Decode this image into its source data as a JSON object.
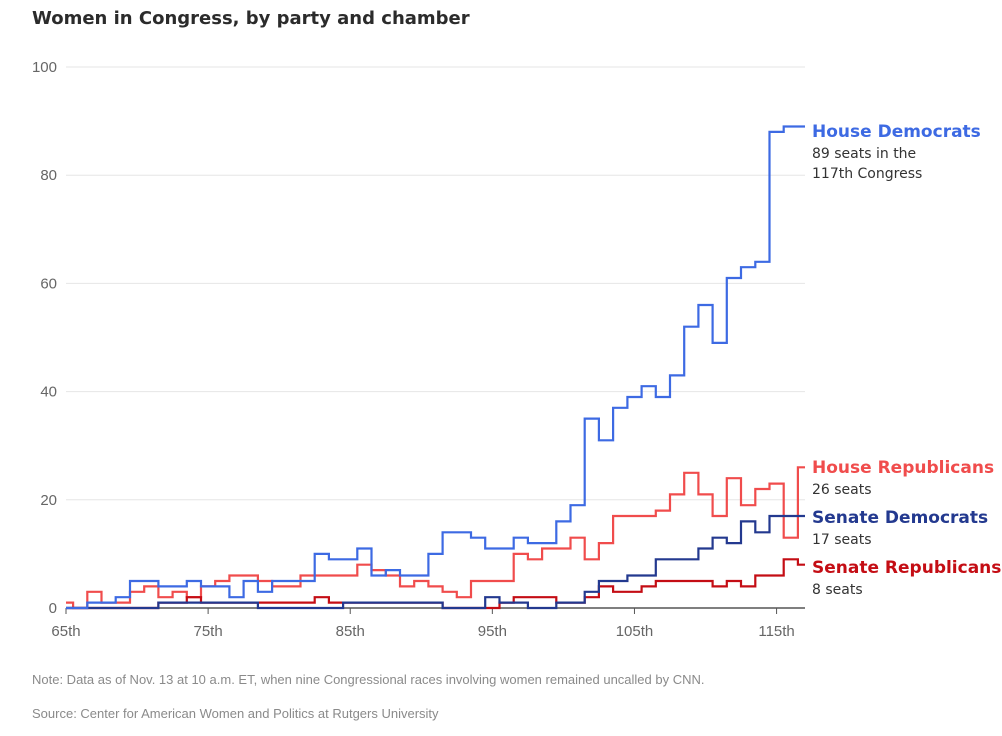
{
  "chart_data": {
    "type": "line",
    "step": true,
    "title": "Women in Congress, by party and chamber",
    "xlabel": "",
    "ylabel": "",
    "xlim": [
      65,
      117
    ],
    "ylim": [
      0,
      100
    ],
    "y_ticks": [
      0,
      20,
      40,
      60,
      80,
      100
    ],
    "x_ticks": [
      65,
      75,
      85,
      95,
      105,
      115
    ],
    "x_tick_labels": [
      "65th",
      "75th",
      "85th",
      "95th",
      "105th",
      "115th"
    ],
    "grid": true,
    "x": [
      65,
      66,
      67,
      68,
      69,
      70,
      71,
      72,
      73,
      74,
      75,
      76,
      77,
      78,
      79,
      80,
      81,
      82,
      83,
      84,
      85,
      86,
      87,
      88,
      89,
      90,
      91,
      92,
      93,
      94,
      95,
      96,
      97,
      98,
      99,
      100,
      101,
      102,
      103,
      104,
      105,
      106,
      107,
      108,
      109,
      110,
      111,
      112,
      113,
      114,
      115,
      116,
      117
    ],
    "series": [
      {
        "name": "House Democrats",
        "color": "#3d6ae3",
        "label_sub": "89 seats in the 117th Congress",
        "label_sub_lines": [
          "89 seats in the",
          "117th Congress"
        ],
        "values": [
          0,
          0,
          1,
          1,
          2,
          5,
          5,
          4,
          4,
          5,
          4,
          4,
          2,
          5,
          3,
          5,
          5,
          5,
          10,
          9,
          9,
          11,
          6,
          7,
          6,
          6,
          10,
          14,
          14,
          13,
          11,
          11,
          13,
          12,
          12,
          16,
          19,
          35,
          31,
          37,
          39,
          41,
          39,
          43,
          52,
          56,
          49,
          61,
          63,
          64,
          88,
          89,
          89
        ]
      },
      {
        "name": "House Republicans",
        "color": "#f04c4c",
        "label_sub": "26 seats",
        "label_sub_lines": [
          "26 seats"
        ],
        "values": [
          1,
          0,
          3,
          1,
          1,
          3,
          4,
          2,
          3,
          2,
          4,
          5,
          6,
          6,
          5,
          4,
          4,
          6,
          6,
          6,
          6,
          8,
          7,
          6,
          4,
          5,
          4,
          3,
          2,
          5,
          5,
          5,
          10,
          9,
          11,
          11,
          13,
          9,
          12,
          17,
          17,
          17,
          18,
          21,
          25,
          21,
          17,
          24,
          19,
          22,
          23,
          13,
          26
        ]
      },
      {
        "name": "Senate Democrats",
        "color": "#23398f",
        "label_sub": "17 seats",
        "label_sub_lines": [
          "17 seats"
        ],
        "values": [
          0,
          0,
          0,
          0,
          0,
          0,
          0,
          1,
          1,
          1,
          1,
          1,
          1,
          1,
          0,
          0,
          0,
          0,
          0,
          0,
          1,
          1,
          1,
          1,
          1,
          1,
          1,
          0,
          0,
          0,
          2,
          1,
          1,
          0,
          0,
          1,
          1,
          3,
          5,
          5,
          6,
          6,
          9,
          9,
          9,
          11,
          13,
          12,
          16,
          14,
          17,
          17,
          17
        ]
      },
      {
        "name": "Senate Republicans",
        "color": "#c40d14",
        "label_sub": "8 seats",
        "label_sub_lines": [
          "8 seats"
        ],
        "values": [
          0,
          0,
          0,
          0,
          0,
          0,
          0,
          1,
          1,
          2,
          1,
          1,
          1,
          1,
          1,
          1,
          1,
          1,
          2,
          1,
          1,
          1,
          1,
          1,
          1,
          1,
          1,
          0,
          0,
          0,
          0,
          1,
          2,
          2,
          2,
          1,
          1,
          2,
          4,
          3,
          3,
          4,
          5,
          5,
          5,
          5,
          4,
          5,
          4,
          6,
          6,
          9,
          8
        ]
      }
    ]
  },
  "note": "Note: Data as of Nov. 13 at 10 a.m. ET, when nine Congressional races involving women remained uncalled by CNN.",
  "source": "Source: Center for American Women and Politics at Rutgers University"
}
